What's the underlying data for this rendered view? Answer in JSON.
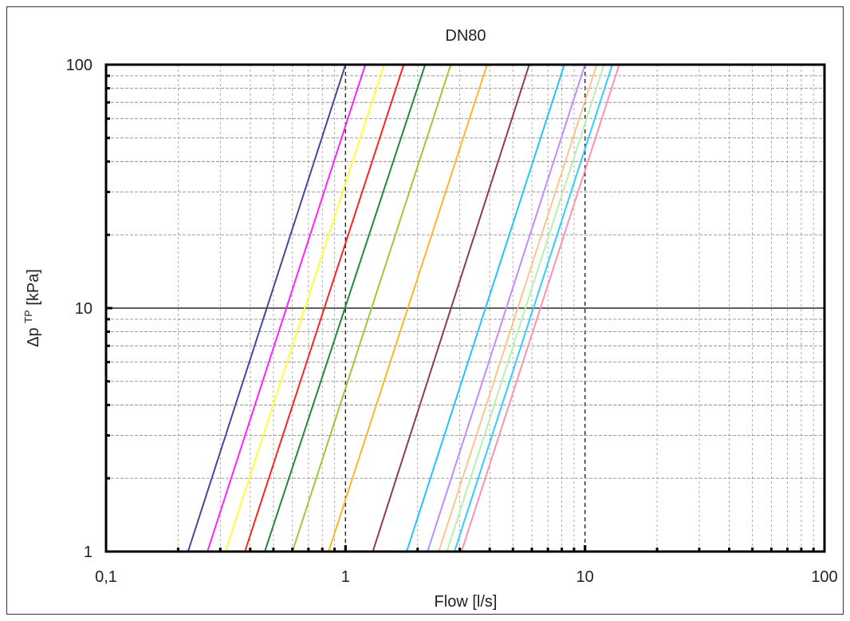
{
  "chart_data": {
    "type": "line",
    "title": "DN80",
    "xlabel": "Flow [l/s]",
    "ylabel": {
      "prefix": "Δp",
      "superscript": "TP",
      "suffix": "[kPa]"
    },
    "x_scale": "log",
    "y_scale": "log",
    "xlim": [
      0.1,
      100
    ],
    "ylim": [
      1,
      100
    ],
    "x_ticks": [
      {
        "value": 0.1,
        "label": "0,1"
      },
      {
        "value": 1,
        "label": "1"
      },
      {
        "value": 10,
        "label": "10"
      },
      {
        "value": 100,
        "label": "100"
      }
    ],
    "y_ticks": [
      {
        "value": 1,
        "label": "1"
      },
      {
        "value": 10,
        "label": "10"
      },
      {
        "value": 100,
        "label": "100"
      }
    ],
    "grid": true,
    "legend": "none",
    "series": [
      {
        "color": "#404a9a",
        "x": [
          0.22,
          1.0
        ],
        "y": [
          1,
          100
        ]
      },
      {
        "color": "#ff22ff",
        "x": [
          0.265,
          1.21
        ],
        "y": [
          1,
          100
        ]
      },
      {
        "color": "#ffff33",
        "x": [
          0.315,
          1.45
        ],
        "y": [
          1,
          100
        ]
      },
      {
        "color": "#ff2222",
        "x": [
          0.38,
          1.75
        ],
        "y": [
          1,
          100
        ]
      },
      {
        "color": "#1f8a3a",
        "x": [
          0.46,
          2.15
        ],
        "y": [
          1,
          100
        ]
      },
      {
        "color": "#99cc33",
        "x": [
          0.6,
          2.75
        ],
        "y": [
          1,
          100
        ]
      },
      {
        "color": "#ffb52a",
        "x": [
          0.85,
          3.9
        ],
        "y": [
          1,
          100
        ]
      },
      {
        "color": "#8b3a5a",
        "x": [
          1.3,
          5.85
        ],
        "y": [
          1,
          100
        ]
      },
      {
        "color": "#22c4ff",
        "x": [
          1.8,
          8.2
        ],
        "y": [
          1,
          100
        ]
      },
      {
        "color": "#c08cff",
        "x": [
          2.2,
          10.0
        ],
        "y": [
          1,
          100
        ]
      },
      {
        "color": "#ffc48c",
        "x": [
          2.45,
          11.2
        ],
        "y": [
          1,
          100
        ]
      },
      {
        "color": "#b8f0b0",
        "x": [
          2.65,
          12.0
        ],
        "y": [
          1,
          100
        ]
      },
      {
        "color": "#33ccff",
        "x": [
          2.85,
          13.0
        ],
        "y": [
          1,
          100
        ]
      },
      {
        "color": "#ff8fb8",
        "x": [
          3.05,
          13.9
        ],
        "y": [
          1,
          100
        ]
      }
    ]
  }
}
